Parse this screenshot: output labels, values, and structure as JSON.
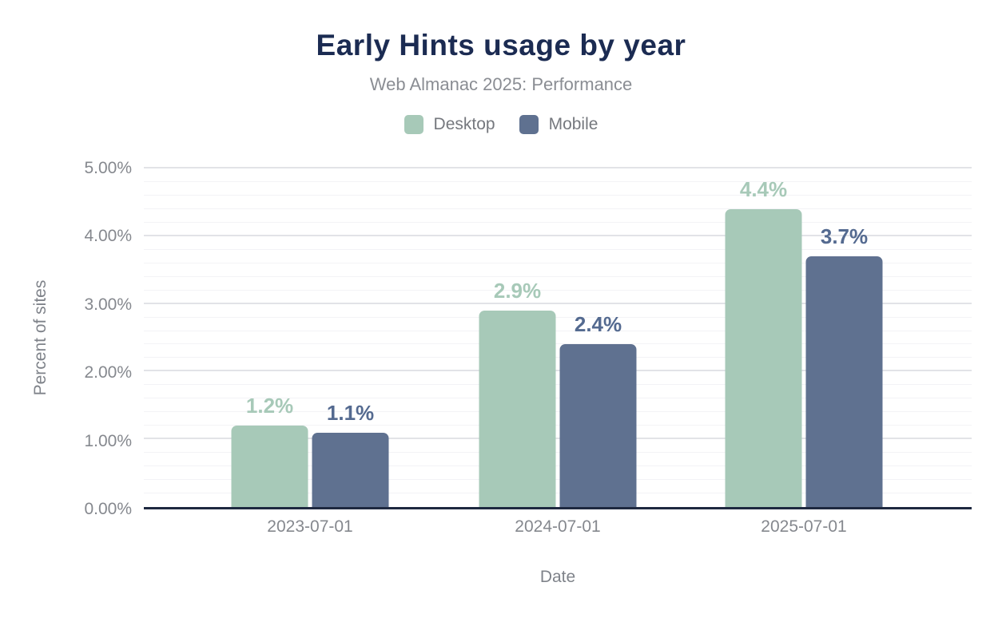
{
  "chart_data": {
    "type": "bar",
    "title": "Early Hints usage by year",
    "subtitle": "Web Almanac 2025: Performance",
    "xlabel": "Date",
    "ylabel": "Percent of sites",
    "categories": [
      "2023-07-01",
      "2024-07-01",
      "2025-07-01"
    ],
    "series": [
      {
        "name": "Desktop",
        "color": "#a7c9b8",
        "label_color": "#a7c9b8",
        "values": [
          1.2,
          2.9,
          4.4
        ],
        "value_labels": [
          "1.2%",
          "2.9%",
          "4.4%"
        ]
      },
      {
        "name": "Mobile",
        "color": "#5f7190",
        "label_color": "#546a90",
        "values": [
          1.1,
          2.4,
          3.7
        ],
        "value_labels": [
          "1.1%",
          "2.4%",
          "3.7%"
        ]
      }
    ],
    "ylim": [
      0,
      5
    ],
    "ytick_labels": [
      "5.00%",
      "4.00%",
      "3.00%",
      "2.00%",
      "1.00%",
      "0.00%"
    ],
    "ytick_values": [
      5,
      4,
      3,
      2,
      1,
      0
    ],
    "grid_minor_step": 0.2,
    "grid_major_step": 1.0,
    "grid": true,
    "legend_position": "top"
  },
  "colors": {
    "title": "#1b2b52",
    "subtitle": "#8a8d93",
    "legend_text": "#75787e",
    "tick_text": "#85888e",
    "axis_title_text": "#7f838a",
    "axis_line": "#1e2940",
    "grid_major": "#e2e3e7",
    "grid_minor": "#f3f3f6",
    "background": "#ffffff"
  }
}
